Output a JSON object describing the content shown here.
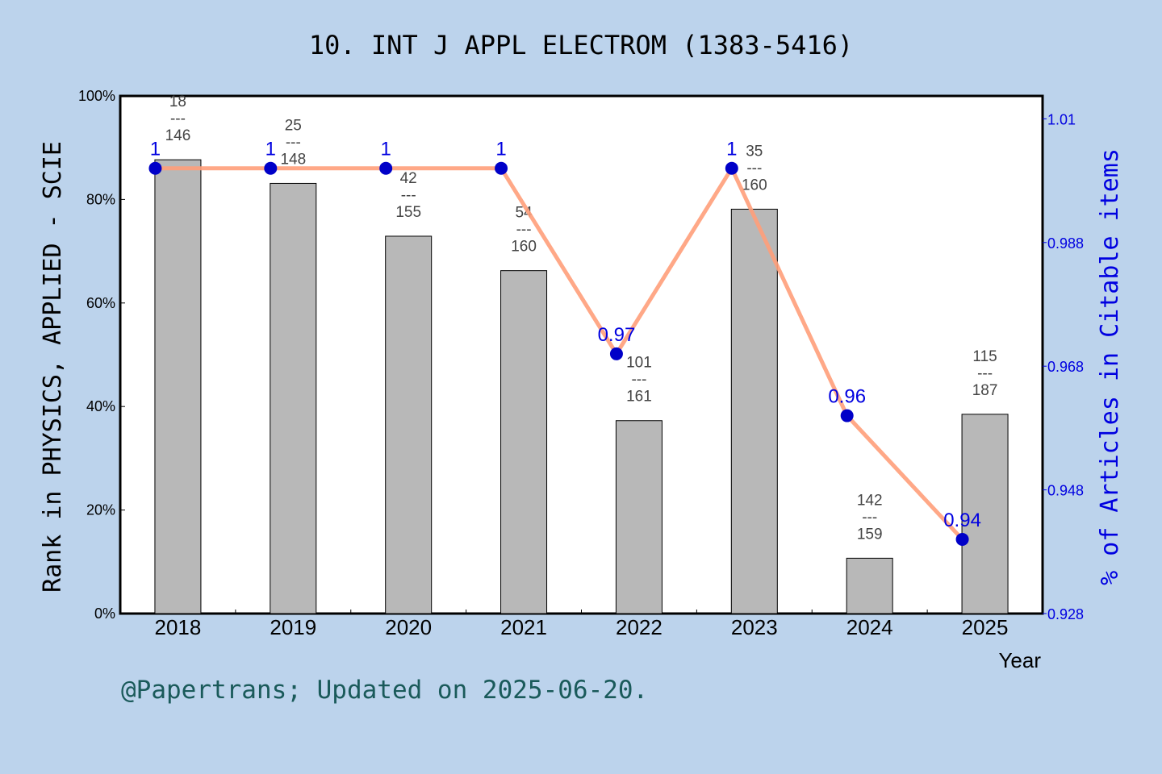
{
  "chart_data": {
    "type": "bar+line",
    "title": "10. INT J APPL ELECTROM (1383-5416)",
    "xlabel": "Year",
    "ylabel_left": "Rank in PHYSICS, APPLIED - SCIE",
    "ylabel_right": "% of Articles in Citable items",
    "categories": [
      "2018",
      "2019",
      "2020",
      "2021",
      "2022",
      "2023",
      "2024",
      "2025"
    ],
    "left_axis": {
      "ylim": [
        0,
        100
      ],
      "ticks": [
        "0%",
        "20%",
        "40%",
        "60%",
        "80%",
        "100%"
      ],
      "tick_values": [
        0,
        20,
        40,
        60,
        80,
        100
      ]
    },
    "right_axis": {
      "ylim": [
        0.928,
        1.0117
      ],
      "ticks": [
        "0.928",
        "0.948",
        "0.968",
        "0.988",
        "1.01"
      ],
      "tick_values": [
        0.928,
        0.948,
        0.968,
        0.988,
        1.008
      ]
    },
    "bars": {
      "ranks": [
        18,
        25,
        42,
        54,
        101,
        35,
        142,
        115
      ],
      "totals": [
        146,
        148,
        155,
        160,
        161,
        160,
        159,
        187
      ],
      "separator": "---",
      "color": "#b8b8b8"
    },
    "line": {
      "values": [
        1,
        1,
        1,
        1,
        0.97,
        1,
        0.96,
        0.94
      ],
      "labels": [
        "1",
        "1",
        "1",
        "1",
        "0.97",
        "1",
        "0.96",
        "0.94"
      ],
      "line_color": "#ff9f7a",
      "marker_color": "#0000c8"
    },
    "grid": false
  },
  "footer": "@Papertrans; Updated on 2025-06-20."
}
